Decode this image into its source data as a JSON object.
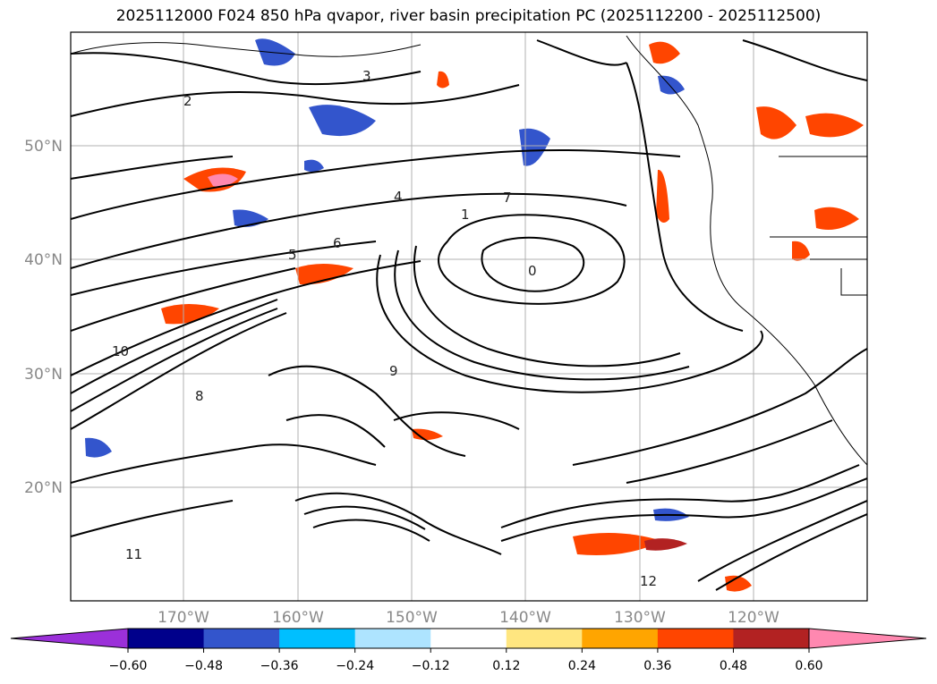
{
  "title": "2025112000 F024 850 hPa qvapor, river basin precipitation PC (2025112200 - 2025112500)",
  "lat_labels": [
    "50°N",
    "40°N",
    "30°N",
    "20°N"
  ],
  "lon_labels": [
    "170°W",
    "160°W",
    "150°W",
    "140°W",
    "130°W",
    "120°W"
  ],
  "colorbar": {
    "ticks": [
      "−0.60",
      "−0.48",
      "−0.36",
      "−0.24",
      "−0.12",
      "0.12",
      "0.24",
      "0.36",
      "0.48",
      "0.60"
    ],
    "under_color": "#9b30d9",
    "over_color": "#ff88b0",
    "colors": [
      "#00008b",
      "#3355cc",
      "#00bfff",
      "#aee4ff",
      "#ffffff",
      "#ffe680",
      "#ffa500",
      "#ff4500",
      "#b22222"
    ]
  },
  "contour_labels": [
    "2",
    "3",
    "4",
    "5",
    "6",
    "7",
    "0",
    "8",
    "9",
    "10",
    "11",
    "12",
    "1"
  ]
}
